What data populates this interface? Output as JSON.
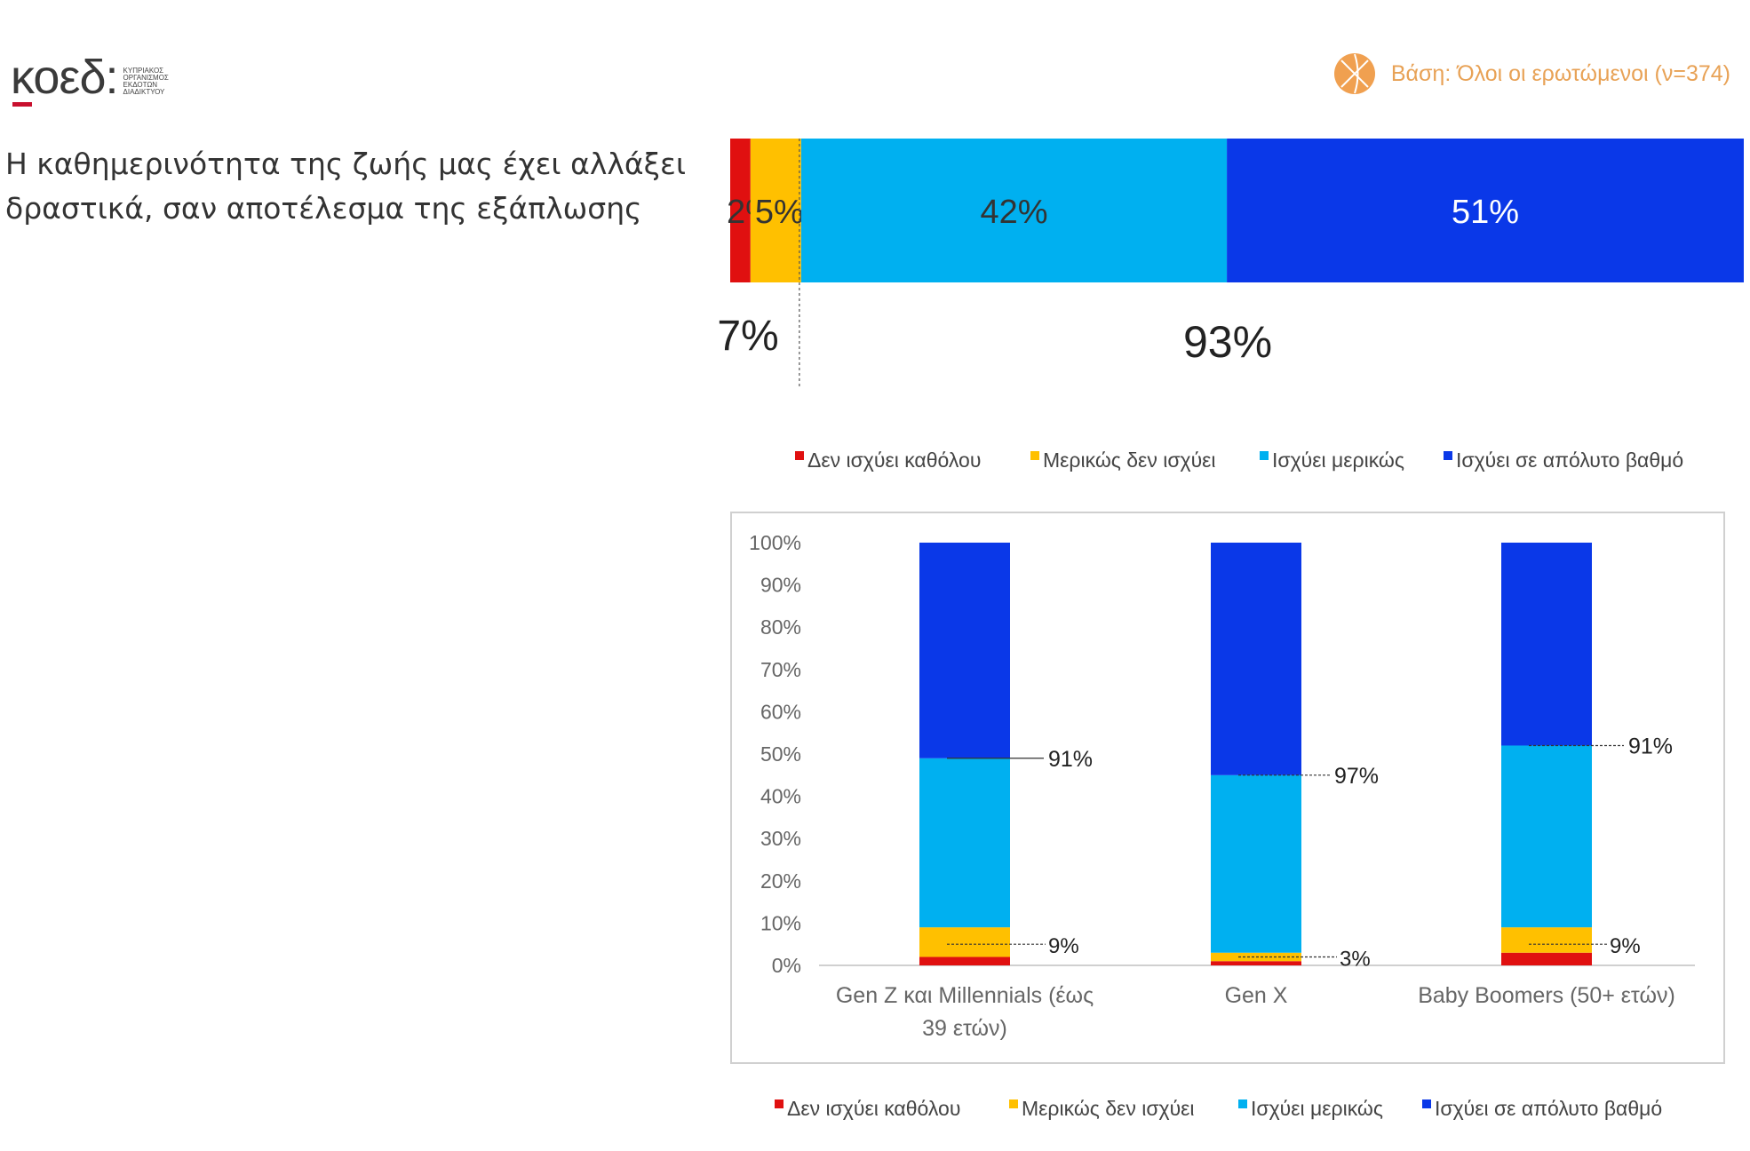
{
  "logo": {
    "word": "κοεδ:",
    "lines": [
      "ΚΥΠΡΙΑΚΟΣ",
      "ΟΡΓΑΝΙΣΜΟΣ",
      "ΕΚΔΟΤΩΝ",
      "ΔΙΑΔΙΚΤΥΟΥ"
    ]
  },
  "base_text": "Βάση: Όλοι οι ερωτώμενοι (ν=374)",
  "question_lines": [
    "Η καθημερινότητα της ζωής μας έχει αλλάξει",
    "δραστικά, σαν αποτέλεσμα της εξάπλωσης"
  ],
  "colors": {
    "red": "#e01010",
    "yellow": "#ffc000",
    "light_blue": "#00b0f0",
    "dark_blue": "#0a38e8"
  },
  "chart_data": [
    {
      "type": "bar",
      "orientation": "horizontal-stacked",
      "series": [
        {
          "name": "Δεν ισχύει καθόλου",
          "values": [
            2
          ],
          "color": "#e01010",
          "label": "2%"
        },
        {
          "name": "Μερικώς δεν ισχύει",
          "values": [
            5
          ],
          "color": "#ffc000",
          "label": "5%"
        },
        {
          "name": "Ισχύει μερικώς",
          "values": [
            42
          ],
          "color": "#00b0f0",
          "label": "42%"
        },
        {
          "name": "Ισχύει σε απόλυτο βαθμό",
          "values": [
            51
          ],
          "color": "#0a38e8",
          "label": "51%"
        }
      ],
      "totals": {
        "disagree": "7%",
        "agree": "93%"
      },
      "legend": [
        "Δεν ισχύει καθόλου",
        "Μερικώς δεν ισχύει",
        "Ισχύει μερικώς",
        "Ισχύει σε απόλυτο βαθμό"
      ]
    },
    {
      "type": "bar",
      "orientation": "vertical-stacked",
      "categories": [
        [
          "Gen Z και Millennials (έως",
          "39 ετών)"
        ],
        [
          "Gen X"
        ],
        [
          "Baby Boomers (50+ ετών)"
        ]
      ],
      "series": [
        {
          "name": "Δεν ισχύει καθόλου",
          "values": [
            2,
            1,
            3
          ],
          "color": "#e01010"
        },
        {
          "name": "Μερικώς δεν ισχύει",
          "values": [
            7,
            2,
            6
          ],
          "color": "#ffc000"
        },
        {
          "name": "Ισχύει μερικώς",
          "values": [
            40,
            42,
            43
          ],
          "color": "#00b0f0"
        },
        {
          "name": "Ισχύει σε απόλυτο βαθμό",
          "values": [
            51,
            55,
            48
          ],
          "color": "#0a38e8"
        }
      ],
      "top_labels": [
        "91%",
        "97%",
        "91%"
      ],
      "bottom_labels": [
        "9%",
        "3%",
        "9%"
      ],
      "yticks": [
        "0%",
        "10%",
        "20%",
        "30%",
        "40%",
        "50%",
        "60%",
        "70%",
        "80%",
        "90%",
        "100%"
      ],
      "ylim": [
        0,
        100
      ],
      "legend": [
        "Δεν ισχύει καθόλου",
        "Μερικώς δεν ισχύει",
        "Ισχύει μερικώς",
        "Ισχύει σε απόλυτο βαθμό"
      ]
    }
  ]
}
